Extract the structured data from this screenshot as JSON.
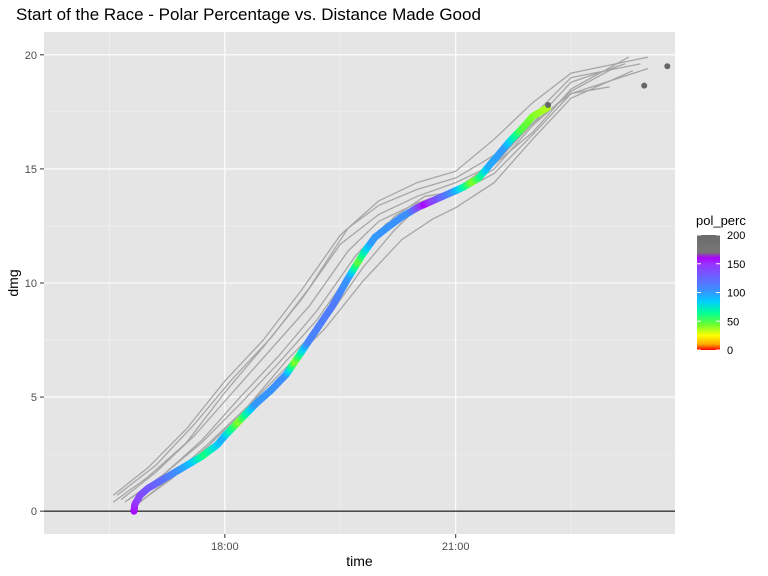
{
  "chart_data": {
    "type": "scatter",
    "title": "Start of the Race - Polar Percentage vs. Distance Made Good",
    "xlabel": "time",
    "ylabel": "dmg",
    "x_unit": "hours of day",
    "xlim": [
      15.65,
      23.85
    ],
    "ylim": [
      -1.0,
      21.0
    ],
    "x_ticks": [
      {
        "value": 18.0,
        "label": "18:00"
      },
      {
        "value": 21.0,
        "label": "21:00"
      }
    ],
    "y_ticks": [
      {
        "value": 0,
        "label": "0"
      },
      {
        "value": 5,
        "label": "5"
      },
      {
        "value": 10,
        "label": "10"
      },
      {
        "value": 15,
        "label": "15"
      },
      {
        "value": 20,
        "label": "20"
      }
    ],
    "hline": {
      "y": 0,
      "color": "#333333"
    },
    "grid": true,
    "background": "#e5e5e5",
    "legend": {
      "title": "pol_perc",
      "position": "right",
      "type": "colorbar",
      "min": 0,
      "max": 200,
      "ticks": [
        {
          "value": 0,
          "label": "0"
        },
        {
          "value": 50,
          "label": "50"
        },
        {
          "value": 100,
          "label": "100"
        },
        {
          "value": 150,
          "label": "150"
        },
        {
          "value": 200,
          "label": "200"
        }
      ],
      "stops": [
        {
          "value": 0,
          "color": "#ff0000"
        },
        {
          "value": 10,
          "color": "#ffaa00"
        },
        {
          "value": 25,
          "color": "#ffff00"
        },
        {
          "value": 45,
          "color": "#66ff33"
        },
        {
          "value": 65,
          "color": "#00ff99"
        },
        {
          "value": 85,
          "color": "#00ccff"
        },
        {
          "value": 100,
          "color": "#3399ff"
        },
        {
          "value": 125,
          "color": "#6666ff"
        },
        {
          "value": 150,
          "color": "#9933ff"
        },
        {
          "value": 160,
          "color": "#aa00ff"
        },
        {
          "value": 170,
          "color": "#777777"
        },
        {
          "value": 200,
          "color": "#6a6a6a"
        }
      ]
    },
    "line_color": "#a6a6a6",
    "lines": [
      {
        "points": [
          [
            16.55,
            0.4
          ],
          [
            17.0,
            1.5
          ],
          [
            17.5,
            3.0
          ],
          [
            18.0,
            5.2
          ],
          [
            18.5,
            7.2
          ],
          [
            19.0,
            9.3
          ],
          [
            19.5,
            11.7
          ],
          [
            20.0,
            13.0
          ],
          [
            20.5,
            13.8
          ],
          [
            21.0,
            14.4
          ],
          [
            21.5,
            15.2
          ],
          [
            22.0,
            16.6
          ],
          [
            22.5,
            18.5
          ],
          [
            23.25,
            19.9
          ]
        ]
      },
      {
        "points": [
          [
            16.55,
            0.7
          ],
          [
            17.0,
            1.9
          ],
          [
            17.5,
            3.6
          ],
          [
            18.0,
            5.7
          ],
          [
            18.5,
            7.5
          ],
          [
            19.0,
            9.7
          ],
          [
            19.5,
            12.1
          ],
          [
            20.0,
            13.6
          ],
          [
            20.5,
            14.4
          ],
          [
            21.0,
            14.9
          ],
          [
            21.5,
            16.3
          ],
          [
            22.0,
            17.9
          ],
          [
            22.5,
            19.2
          ],
          [
            23.5,
            19.9
          ]
        ]
      },
      {
        "points": [
          [
            16.9,
            0.4
          ],
          [
            17.3,
            1.5
          ],
          [
            17.8,
            3.0
          ],
          [
            18.3,
            4.6
          ],
          [
            18.8,
            6.6
          ],
          [
            19.3,
            8.3
          ],
          [
            19.8,
            10.7
          ],
          [
            20.2,
            12.3
          ],
          [
            20.5,
            13.3
          ],
          [
            21.0,
            13.9
          ],
          [
            21.5,
            14.8
          ],
          [
            22.0,
            16.5
          ],
          [
            22.5,
            18.3
          ],
          [
            23.5,
            19.4
          ]
        ]
      },
      {
        "points": [
          [
            16.75,
            0.5
          ],
          [
            17.2,
            1.6
          ],
          [
            17.7,
            3.0
          ],
          [
            18.2,
            4.7
          ],
          [
            18.7,
            6.5
          ],
          [
            19.2,
            8.4
          ],
          [
            19.7,
            10.8
          ],
          [
            20.2,
            12.9
          ],
          [
            20.6,
            13.8
          ],
          [
            21.0,
            14.0
          ],
          [
            21.5,
            15.0
          ],
          [
            22.0,
            16.9
          ],
          [
            22.5,
            18.4
          ],
          [
            23.1,
            19.5
          ]
        ]
      },
      {
        "points": [
          [
            16.65,
            0.5
          ],
          [
            17.1,
            1.7
          ],
          [
            17.6,
            3.3
          ],
          [
            18.1,
            5.2
          ],
          [
            18.6,
            7.1
          ],
          [
            19.1,
            9.0
          ],
          [
            19.6,
            11.4
          ],
          [
            20.0,
            12.7
          ],
          [
            20.5,
            13.5
          ],
          [
            21.0,
            14.1
          ],
          [
            21.5,
            15.3
          ],
          [
            22.0,
            17.0
          ],
          [
            22.5,
            18.8
          ],
          [
            23.2,
            19.6
          ]
        ]
      },
      {
        "points": [
          [
            16.6,
            0.7
          ],
          [
            17.1,
            2.0
          ],
          [
            17.6,
            3.8
          ],
          [
            18.1,
            5.8
          ],
          [
            18.6,
            7.6
          ],
          [
            19.1,
            9.8
          ],
          [
            19.6,
            12.4
          ],
          [
            20.0,
            13.4
          ],
          [
            20.5,
            14.1
          ],
          [
            21.0,
            14.6
          ],
          [
            21.5,
            15.6
          ],
          [
            22.0,
            17.3
          ],
          [
            22.5,
            19.0
          ],
          [
            23.4,
            19.6
          ]
        ]
      },
      {
        "points": [
          [
            16.85,
            0.3
          ],
          [
            17.3,
            1.4
          ],
          [
            17.8,
            2.9
          ],
          [
            18.3,
            4.6
          ],
          [
            18.8,
            6.3
          ],
          [
            19.3,
            8.0
          ],
          [
            19.8,
            10.1
          ],
          [
            20.3,
            11.9
          ],
          [
            20.7,
            12.8
          ],
          [
            21.0,
            13.3
          ],
          [
            21.5,
            14.4
          ],
          [
            22.0,
            16.3
          ],
          [
            22.5,
            18.1
          ],
          [
            23.3,
            19.3
          ]
        ]
      },
      {
        "points": [
          [
            16.7,
            0.4
          ],
          [
            17.2,
            1.6
          ],
          [
            17.7,
            3.1
          ],
          [
            18.2,
            5.0
          ],
          [
            18.7,
            6.8
          ],
          [
            19.2,
            8.8
          ],
          [
            19.7,
            11.2
          ],
          [
            20.1,
            12.6
          ],
          [
            20.6,
            13.5
          ],
          [
            21.0,
            14.0
          ],
          [
            21.5,
            15.2
          ],
          [
            22.0,
            17.0
          ],
          [
            22.5,
            18.3
          ],
          [
            23.0,
            18.6
          ]
        ]
      }
    ],
    "track": {
      "point_size": 3.5,
      "segments": [
        [
          [
            16.82,
            0.0
          ],
          [
            16.83,
            0.3
          ],
          [
            16.9,
            0.7
          ],
          [
            17.0,
            1.0
          ],
          [
            17.15,
            1.3
          ],
          [
            17.3,
            1.6
          ],
          [
            17.5,
            2.0
          ],
          [
            17.7,
            2.4
          ],
          [
            17.9,
            2.9
          ],
          [
            18.0,
            3.3
          ],
          [
            18.2,
            4.0
          ],
          [
            18.4,
            4.7
          ],
          [
            18.6,
            5.3
          ],
          [
            18.8,
            6.0
          ],
          [
            19.0,
            7.0
          ],
          [
            19.2,
            8.0
          ],
          [
            19.4,
            9.0
          ],
          [
            19.6,
            10.2
          ],
          [
            19.8,
            11.3
          ],
          [
            19.95,
            12.0
          ],
          [
            20.1,
            12.4
          ],
          [
            20.3,
            12.9
          ],
          [
            20.5,
            13.3
          ],
          [
            20.7,
            13.6
          ],
          [
            20.9,
            13.9
          ],
          [
            21.1,
            14.2
          ],
          [
            21.3,
            14.6
          ],
          [
            21.5,
            15.4
          ],
          [
            21.7,
            16.2
          ],
          [
            21.9,
            16.9
          ],
          [
            22.0,
            17.3
          ],
          [
            22.1,
            17.5
          ],
          [
            22.2,
            17.7
          ]
        ]
      ],
      "values": [
        {
          "t": 0.0,
          "v": 160
        },
        {
          "t": 0.03,
          "v": 140
        },
        {
          "t": 0.08,
          "v": 120
        },
        {
          "t": 0.13,
          "v": 90
        },
        {
          "t": 0.16,
          "v": 60
        },
        {
          "t": 0.2,
          "v": 95
        },
        {
          "t": 0.24,
          "v": 40
        },
        {
          "t": 0.28,
          "v": 100
        },
        {
          "t": 0.35,
          "v": 105
        },
        {
          "t": 0.38,
          "v": 40
        },
        {
          "t": 0.42,
          "v": 110
        },
        {
          "t": 0.5,
          "v": 115
        },
        {
          "t": 0.55,
          "v": 100
        },
        {
          "t": 0.58,
          "v": 45
        },
        {
          "t": 0.62,
          "v": 100
        },
        {
          "t": 0.7,
          "v": 105
        },
        {
          "t": 0.73,
          "v": 160
        },
        {
          "t": 0.78,
          "v": 105
        },
        {
          "t": 0.82,
          "v": 40
        },
        {
          "t": 0.86,
          "v": 95
        },
        {
          "t": 0.9,
          "v": 100
        },
        {
          "t": 0.94,
          "v": 50
        },
        {
          "t": 1.0,
          "v": 35
        }
      ]
    },
    "endpoints": [
      {
        "x": 22.2,
        "y": 17.8
      },
      {
        "x": 23.45,
        "y": 18.65
      },
      {
        "x": 23.75,
        "y": 19.5
      }
    ],
    "endpoint_color": "#666666"
  }
}
